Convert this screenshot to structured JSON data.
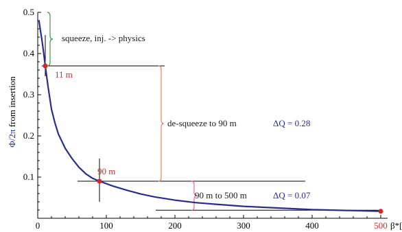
{
  "chart_data": {
    "type": "line",
    "title": "",
    "xlabel": "β*[m]",
    "ylabel": "Φ/2π  from insertion",
    "xlim": [
      0,
      510
    ],
    "ylim": [
      0,
      0.5
    ],
    "xticks": [
      0,
      100,
      200,
      300,
      400,
      500
    ],
    "yticks": [
      0.1,
      0.2,
      0.3,
      0.4,
      0.5
    ],
    "series": [
      {
        "color": "#2b2b8f",
        "x": [
          2,
          4,
          6,
          8,
          11,
          15,
          20,
          25,
          30,
          40,
          50,
          60,
          70,
          80,
          90,
          110,
          130,
          150,
          170,
          200,
          230,
          260,
          300,
          350,
          400,
          450,
          500
        ],
        "y": [
          0.478,
          0.455,
          0.434,
          0.41,
          0.37,
          0.32,
          0.265,
          0.232,
          0.205,
          0.17,
          0.145,
          0.124,
          0.108,
          0.097,
          0.09,
          0.078,
          0.068,
          0.059,
          0.052,
          0.044,
          0.038,
          0.034,
          0.029,
          0.025,
          0.021,
          0.019,
          0.017
        ]
      }
    ],
    "points": [
      {
        "x": 11,
        "y": 0.37,
        "label": "11 m",
        "color": "#d62728"
      },
      {
        "x": 90,
        "y": 0.09,
        "label": "90 m",
        "color": "#d62728"
      },
      {
        "x": 500,
        "y": 0.017,
        "label": "500",
        "color": "#d62728"
      }
    ],
    "annotations": [
      {
        "text": "squeeze, inj. -> physics",
        "color": "#1a1a1a"
      },
      {
        "text": "de-squeeze to 90 m",
        "color": "#1a1a1a"
      },
      {
        "text": "ΔQ =  0.28",
        "color": "#2b2b8f"
      },
      {
        "text": "90 m to 500 m",
        "color": "#1a1a1a"
      },
      {
        "text": "ΔQ =  0.07",
        "color": "#2b2b8f"
      }
    ],
    "brace_colors": {
      "squeeze": "#3a9a3a",
      "desqueeze": "#f08060",
      "to500": "#ee66aa"
    }
  }
}
